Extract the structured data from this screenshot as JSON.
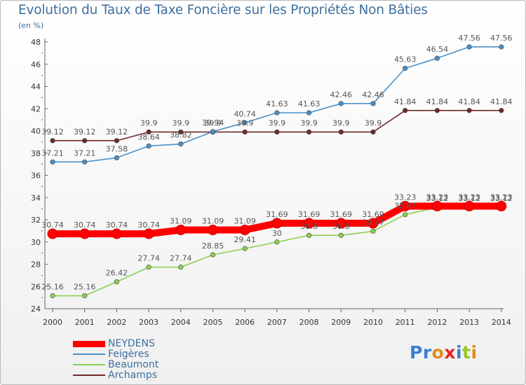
{
  "title": "Evolution du Taux de Taxe Foncière sur les Propriétés Non Bâties",
  "unit_label": "(en %)",
  "brand": {
    "text": "Proxiti",
    "letters": [
      "P",
      "r",
      "o",
      "x",
      "i",
      "t",
      "i"
    ],
    "letter_colors": [
      "#3a7fd0",
      "#3a7fd0",
      "#e88a1a",
      "#e82020",
      "#3a7fd0",
      "#9bc420",
      "#e88a1a"
    ]
  },
  "chart_data": {
    "type": "line",
    "title": "Evolution du Taux de Taxe Foncière sur les Propriétés Non Bâties",
    "ylabel": "(en %)",
    "xlabel": "",
    "ylim": [
      24,
      48
    ],
    "yticks": [
      24,
      26,
      28,
      30,
      32,
      34,
      36,
      38,
      40,
      42,
      44,
      46,
      48
    ],
    "categories": [
      "2000",
      "2001",
      "2002",
      "2003",
      "2004",
      "2005",
      "2006",
      "2007",
      "2008",
      "2009",
      "2010",
      "2011",
      "2012",
      "2013",
      "2014"
    ],
    "series": [
      {
        "name": "NEYDENS",
        "color": "#ff0000",
        "values": [
          30.74,
          30.74,
          30.74,
          30.74,
          31.09,
          31.09,
          31.09,
          31.69,
          31.69,
          31.69,
          31.69,
          33.23,
          33.23,
          33.23,
          33.23
        ],
        "labels": [
          "30.74",
          "30.74",
          "30.74",
          "30.74",
          "31.09",
          "31.09",
          "31.09",
          "31.69",
          "31.69",
          "31.69",
          "31.69",
          "33.23",
          "33.23",
          "33.23",
          "33.23"
        ]
      },
      {
        "name": "Feigères",
        "color": "#4a90c8",
        "values": [
          37.21,
          37.21,
          37.58,
          38.64,
          38.82,
          39.94,
          40.74,
          41.63,
          41.63,
          42.46,
          42.46,
          45.63,
          46.54,
          47.56,
          47.56
        ],
        "labels": [
          "37.21",
          "37.21",
          "37.58",
          "38.64",
          "38.82",
          "39.94",
          "40.74",
          "41.63",
          "41.63",
          "42.46",
          "42.46",
          "45.63",
          "46.54",
          "47.56",
          "47.56"
        ]
      },
      {
        "name": "Beaumont",
        "color": "#8ccf50",
        "values": [
          25.16,
          25.16,
          26.42,
          27.74,
          27.74,
          28.85,
          29.41,
          30,
          30.6,
          30.6,
          30.97,
          32.47,
          33.12,
          33.12,
          33.12
        ],
        "labels": [
          "25.16",
          "25.16",
          "26.42",
          "27.74",
          "27.74",
          "28.85",
          "29.41",
          "30",
          "30.6",
          "30.6",
          "30.97",
          "32.47",
          "33.12",
          "33.12",
          "33.12"
        ]
      },
      {
        "name": "Archamps",
        "color": "#6e2a2a",
        "values": [
          39.12,
          39.12,
          39.12,
          39.9,
          39.9,
          39.9,
          39.9,
          39.9,
          39.9,
          39.9,
          39.9,
          41.84,
          41.84,
          41.84,
          41.84
        ],
        "labels": [
          "39.12",
          "39.12",
          "39.12",
          "39.9",
          "39.9",
          "39.9",
          "39.9",
          "39.9",
          "39.9",
          "39.9",
          "39.9",
          "41.84",
          "41.84",
          "41.84",
          "41.84"
        ]
      }
    ],
    "legend": [
      "NEYDENS",
      "Feigères",
      "Beaumont",
      "Archamps"
    ],
    "grid": false,
    "legend_position": "bottom-left"
  }
}
